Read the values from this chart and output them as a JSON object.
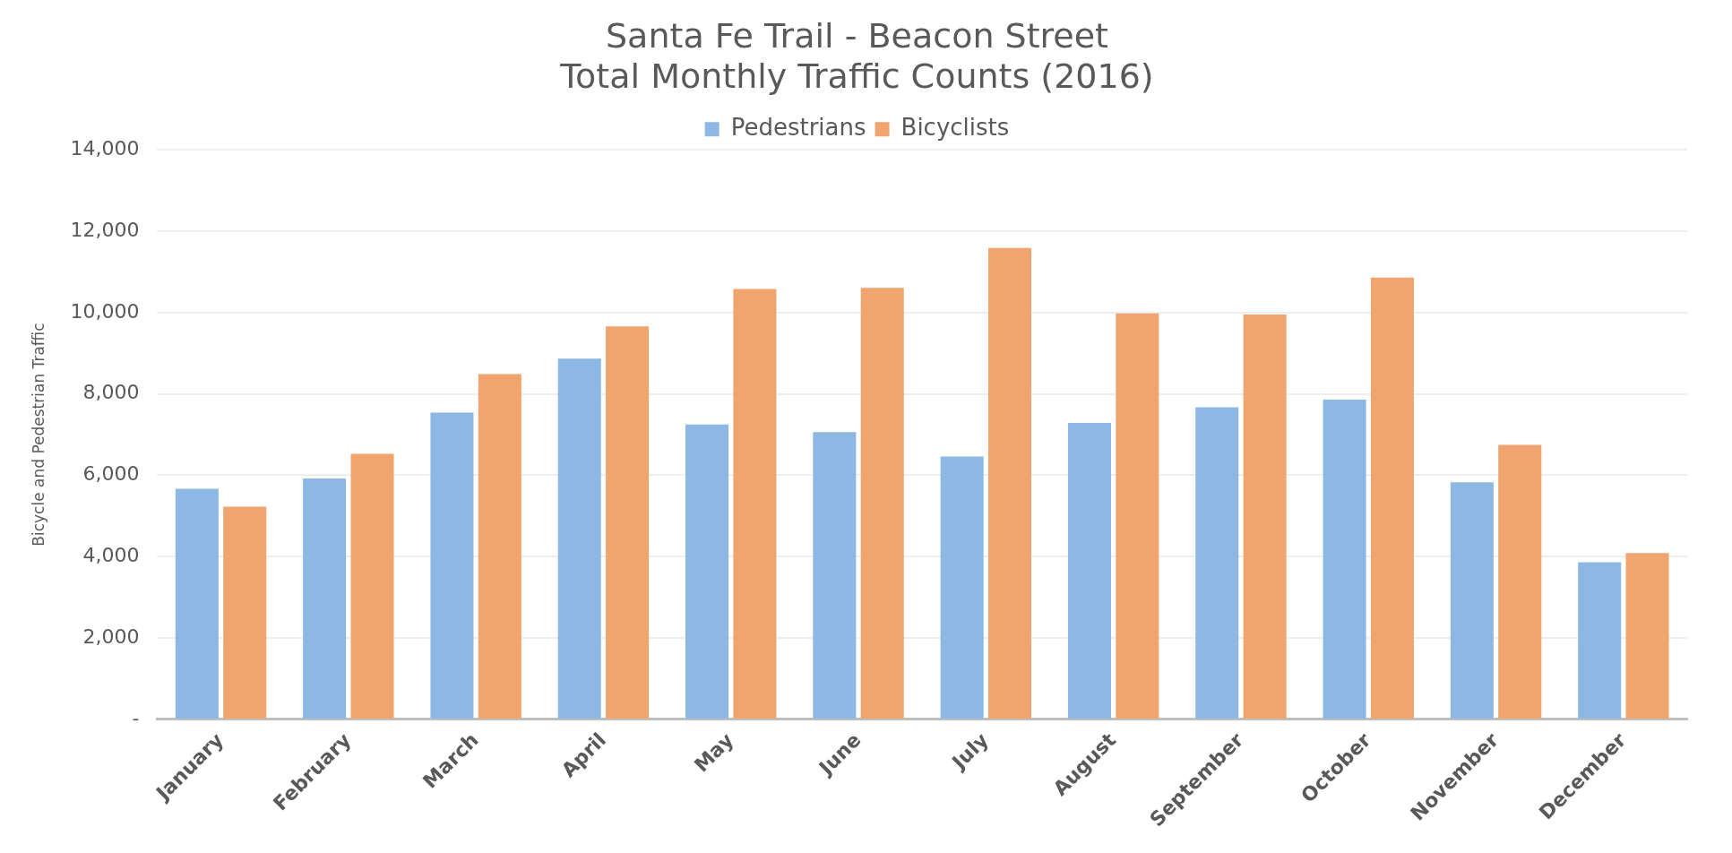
{
  "chart_data": {
    "type": "bar",
    "title": "Santa Fe Trail - Beacon Street",
    "subtitle": "Total Monthly Traffic Counts (2016)",
    "ylabel": "Bicycle and Pedestrian Traffic",
    "categories": [
      "January",
      "February",
      "March",
      "April",
      "May",
      "June",
      "July",
      "August",
      "September",
      "October",
      "November",
      "December"
    ],
    "series": [
      {
        "name": "Pedestrians",
        "color": "#8db8e3",
        "values": [
          5670,
          5920,
          7540,
          8870,
          7250,
          7060,
          6460,
          7290,
          7670,
          7860,
          5830,
          3860
        ]
      },
      {
        "name": "Bicyclists",
        "color": "#f0a46e",
        "values": [
          5230,
          6530,
          8490,
          9660,
          10580,
          10610,
          11590,
          9980,
          9950,
          10860,
          6750,
          4090
        ]
      }
    ],
    "ylim": [
      0,
      14000
    ],
    "yticks": [
      {
        "value": 0,
        "label": "-"
      },
      {
        "value": 2000,
        "label": "2,000"
      },
      {
        "value": 4000,
        "label": "4,000"
      },
      {
        "value": 6000,
        "label": "6,000"
      },
      {
        "value": 8000,
        "label": "8,000"
      },
      {
        "value": 10000,
        "label": "10,000"
      },
      {
        "value": 12000,
        "label": "12,000"
      },
      {
        "value": 14000,
        "label": "14,000"
      }
    ],
    "grid": "y",
    "legend": "top"
  }
}
